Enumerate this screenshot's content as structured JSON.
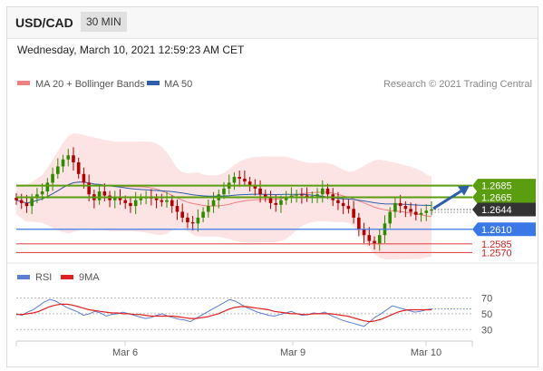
{
  "header": {
    "pair": "USD/CAD",
    "timeframe": "30 MIN"
  },
  "date_line": "Wednesday, March 10, 2021 12:59:23 AM CET",
  "legend": {
    "ma20": {
      "label": "MA 20 + Bollinger Bands",
      "color": "#f08080"
    },
    "ma50": {
      "label": "MA 50",
      "color": "#2f5fa8"
    },
    "credit": "Research © 2021 Trading Central",
    "rsi": {
      "label": "RSI",
      "color": "#5b7fd6"
    },
    "ma9": {
      "label": "9MA",
      "color": "#e02020"
    }
  },
  "chart_data": [
    {
      "type": "candlestick",
      "title": "",
      "x_ticks": [
        "Mar 6",
        "Mar 9",
        "Mar 10"
      ],
      "ylim": [
        1.2552,
        1.2848
      ],
      "levels": [
        {
          "value": 1.2685,
          "label": "1.2685",
          "kind": "resistance",
          "color": "#5a9e0f"
        },
        {
          "value": 1.2665,
          "label": "1.2665",
          "kind": "resistance",
          "color": "#5a9e0f"
        },
        {
          "value": 1.2644,
          "label": "1.2644",
          "kind": "last",
          "color": "#333333"
        },
        {
          "value": 1.261,
          "label": "1.2610",
          "kind": "pivot",
          "color": "#3b78e7"
        },
        {
          "value": 1.2585,
          "label": "1.2585",
          "kind": "support",
          "color": "#e05050"
        },
        {
          "value": 1.257,
          "label": "1.2570",
          "kind": "support",
          "color": "#e05050"
        }
      ],
      "price_path_close": [
        1.266,
        1.2655,
        1.265,
        1.2663,
        1.267,
        1.2675,
        1.269,
        1.2705,
        1.2718,
        1.273,
        1.2737,
        1.2725,
        1.2705,
        1.269,
        1.267,
        1.266,
        1.2675,
        1.2668,
        1.266,
        1.2665,
        1.266,
        1.2655,
        1.265,
        1.266,
        1.2663,
        1.2665,
        1.2663,
        1.266,
        1.2657,
        1.266,
        1.265,
        1.264,
        1.263,
        1.2622,
        1.262,
        1.263,
        1.264,
        1.265,
        1.266,
        1.267,
        1.268,
        1.269,
        1.27,
        1.2697,
        1.2692,
        1.2685,
        1.268,
        1.267,
        1.2665,
        1.2655,
        1.2652,
        1.266,
        1.2665,
        1.2668,
        1.267,
        1.2668,
        1.2665,
        1.2667,
        1.267,
        1.268,
        1.267,
        1.266,
        1.2655,
        1.265,
        1.2645,
        1.263,
        1.261,
        1.26,
        1.259,
        1.2585,
        1.26,
        1.262,
        1.264,
        1.2655,
        1.265,
        1.2645,
        1.264,
        1.2635,
        1.2638,
        1.2642,
        1.2644
      ],
      "forecast_target": 1.2685
    },
    {
      "type": "line",
      "title": "",
      "y_ticks": [
        70,
        50,
        30
      ],
      "ylim": [
        20,
        82
      ],
      "series": [
        {
          "name": "RSI",
          "values": [
            50,
            48,
            52,
            55,
            60,
            65,
            68,
            66,
            62,
            58,
            55,
            52,
            48,
            50,
            53,
            51,
            47,
            49,
            50,
            52,
            50,
            48,
            46,
            44,
            45,
            48,
            50,
            47,
            45,
            43,
            42,
            40,
            44,
            48,
            52,
            56,
            60,
            64,
            68,
            66,
            62,
            58,
            55,
            52,
            50,
            48,
            47,
            49,
            51,
            53,
            50,
            48,
            49,
            51,
            50,
            52,
            48,
            45,
            42,
            40,
            38,
            36,
            34,
            40,
            46,
            50,
            55,
            60,
            58,
            56,
            54,
            52,
            53,
            55,
            56
          ]
        },
        {
          "name": "9MA",
          "values": [
            49,
            49,
            50,
            51,
            53,
            56,
            59,
            61,
            62,
            62,
            61,
            59,
            57,
            55,
            54,
            53,
            52,
            51,
            51,
            50,
            50,
            49,
            49,
            48,
            47,
            47,
            47,
            47,
            47,
            46,
            45,
            44,
            44,
            45,
            46,
            48,
            50,
            53,
            56,
            58,
            59,
            59,
            58,
            57,
            56,
            55,
            53,
            52,
            51,
            50,
            50,
            49,
            49,
            50,
            50,
            50,
            50,
            49,
            48,
            47,
            45,
            43,
            41,
            40,
            41,
            43,
            46,
            49,
            52,
            54,
            55,
            55,
            55,
            55,
            55
          ]
        }
      ]
    }
  ]
}
